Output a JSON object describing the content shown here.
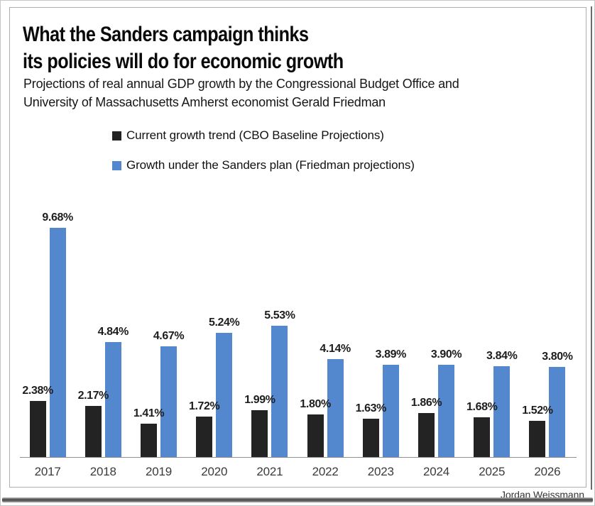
{
  "header": {
    "title_line1": "What the Sanders campaign thinks",
    "title_line2": "its policies will do for economic growth",
    "subtitle_line1": "Projections of real annual GDP growth by the Congressional Budget Office and",
    "subtitle_line2": "University of Massachusetts Amherst economist Gerald Friedman"
  },
  "legend": [
    {
      "label": "Current growth trend (CBO Baseline Projections)",
      "color": "#232323"
    },
    {
      "label": "Growth under the Sanders plan (Friedman projections)",
      "color": "#5488CE"
    }
  ],
  "chart_data": {
    "type": "bar",
    "title": "What the Sanders campaign thinks its policies will do for economic growth",
    "subtitle": "Projections of real annual GDP growth by the Congressional Budget Office and University of Massachusetts Amherst economist Gerald Friedman",
    "categories": [
      "2017",
      "2018",
      "2019",
      "2020",
      "2021",
      "2022",
      "2023",
      "2024",
      "2025",
      "2026"
    ],
    "series": [
      {
        "name": "Current growth trend (CBO Baseline Projections)",
        "key": "cbo",
        "color": "#232323",
        "values": [
          2.38,
          2.17,
          1.41,
          1.72,
          1.99,
          1.8,
          1.63,
          1.86,
          1.68,
          1.52
        ]
      },
      {
        "name": "Growth under the Sanders plan (Friedman projections)",
        "key": "sanders",
        "color": "#5488CE",
        "values": [
          9.68,
          4.84,
          4.67,
          5.24,
          5.53,
          4.14,
          3.89,
          3.9,
          3.84,
          3.8
        ]
      }
    ],
    "value_suffix": "%",
    "data_labels": true,
    "ylim": [
      0,
      10
    ],
    "grid": false,
    "legend_position": "top-left",
    "xlabel": "",
    "ylabel": ""
  },
  "footer": {
    "credit": "Jordan Weissmann"
  }
}
